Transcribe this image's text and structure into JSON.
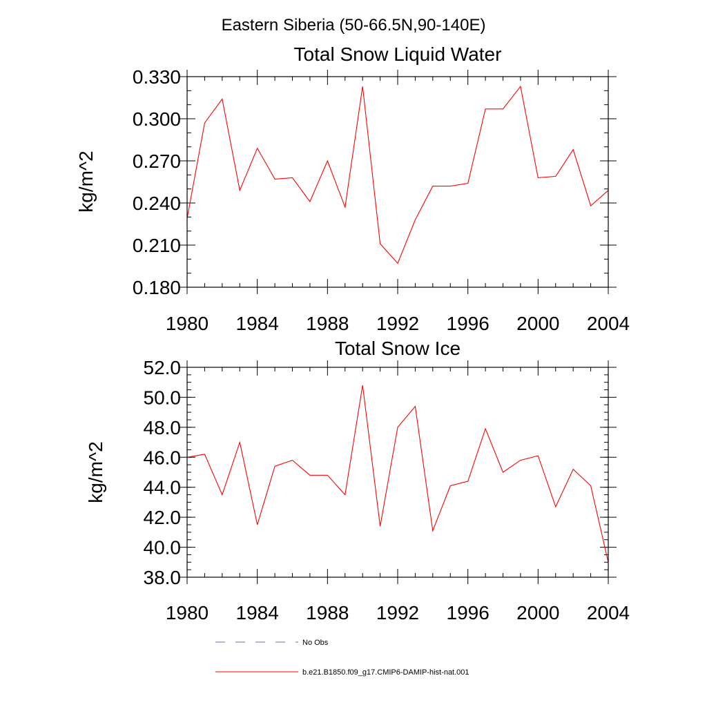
{
  "page_title": "Eastern Siberia (50-66.5N,90-140E)",
  "colors": {
    "model": "#ff0000",
    "obs": "#6b6bb0",
    "axis": "#000000"
  },
  "chart_data": [
    {
      "type": "line",
      "title": "Total Snow Liquid Water",
      "ylabel": "kg/m^2",
      "xlabel": "",
      "xlim": [
        1980,
        2004
      ],
      "ylim": [
        0.18,
        0.33
      ],
      "x_ticks": [
        "1980",
        "1984",
        "1988",
        "1992",
        "1996",
        "2000",
        "2004"
      ],
      "y_ticks": [
        "0.180",
        "0.210",
        "0.240",
        "0.270",
        "0.300",
        "0.330"
      ],
      "x": [
        1980,
        1981,
        1982,
        1983,
        1984,
        1985,
        1986,
        1987,
        1988,
        1989,
        1990,
        1991,
        1992,
        1993,
        1994,
        1995,
        1996,
        1997,
        1998,
        1999,
        2000,
        2001,
        2002,
        2003,
        2004
      ],
      "series": [
        {
          "name": "b.e21.B1850.f09_g17.CMIP6-DAMIP-hist-nat.001",
          "values": [
            0.229,
            0.297,
            0.314,
            0.249,
            0.279,
            0.257,
            0.258,
            0.241,
            0.27,
            0.237,
            0.323,
            0.211,
            0.197,
            0.228,
            0.252,
            0.252,
            0.254,
            0.307,
            0.307,
            0.323,
            0.258,
            0.259,
            0.278,
            0.238,
            0.249
          ]
        }
      ]
    },
    {
      "type": "line",
      "title": "Total Snow Ice",
      "ylabel": "kg/m^2",
      "xlabel": "",
      "xlim": [
        1980,
        2004
      ],
      "ylim": [
        38.0,
        52.0
      ],
      "x_ticks": [
        "1980",
        "1984",
        "1988",
        "1992",
        "1996",
        "2000",
        "2004"
      ],
      "y_ticks": [
        "38.0",
        "40.0",
        "42.0",
        "44.0",
        "46.0",
        "48.0",
        "50.0",
        "52.0"
      ],
      "x": [
        1980,
        1981,
        1982,
        1983,
        1984,
        1985,
        1986,
        1987,
        1988,
        1989,
        1990,
        1991,
        1992,
        1993,
        1994,
        1995,
        1996,
        1997,
        1998,
        1999,
        2000,
        2001,
        2002,
        2003,
        2004
      ],
      "series": [
        {
          "name": "b.e21.B1850.f09_g17.CMIP6-DAMIP-hist-nat.001",
          "values": [
            46.0,
            46.2,
            43.5,
            47.0,
            41.5,
            45.4,
            45.8,
            44.8,
            44.8,
            43.5,
            50.8,
            41.4,
            48.0,
            49.4,
            41.1,
            44.1,
            44.4,
            47.9,
            45.0,
            45.8,
            46.1,
            42.7,
            45.2,
            44.1,
            39.0
          ]
        }
      ]
    }
  ],
  "legend": {
    "placement": "bottom",
    "items": [
      {
        "label": "No Obs",
        "style": "dashed"
      },
      {
        "label": "b.e21.B1850.f09_g17.CMIP6-DAMIP-hist-nat.001",
        "style": "solid"
      }
    ]
  }
}
